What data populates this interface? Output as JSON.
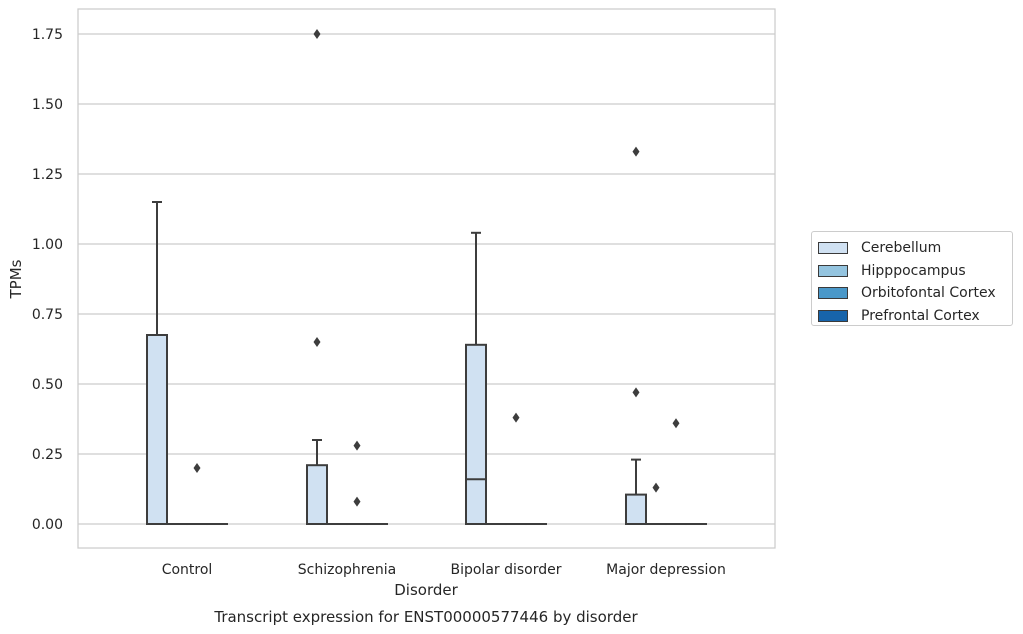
{
  "chart_data": {
    "type": "box",
    "title": "Transcript expression for ENST00000577446 by disorder",
    "xlabel": "Disorder",
    "ylabel": "TPMs",
    "categories": [
      "Control",
      "Schizophrenia",
      "Bipolar disorder",
      "Major depression"
    ],
    "ylim": [
      -0.085,
      1.84
    ],
    "yticks": [
      0.0,
      0.25,
      0.5,
      0.75,
      1.0,
      1.25,
      1.5,
      1.75
    ],
    "ytick_labels": [
      "0.00",
      "0.25",
      "0.50",
      "0.75",
      "1.00",
      "1.25",
      "1.50",
      "1.75"
    ],
    "grid": "horizontal",
    "legend_position": "outside-right",
    "series": [
      {
        "name": "Cerebellum",
        "color": "#d0e1f2",
        "boxes": [
          {
            "q1": 0.0,
            "median": 0.0,
            "q3": 0.675,
            "whisker_low": 0.0,
            "whisker_high": 1.15,
            "outliers": []
          },
          {
            "q1": 0.0,
            "median": 0.0,
            "q3": 0.21,
            "whisker_low": 0.0,
            "whisker_high": 0.3,
            "outliers": [
              0.65,
              1.75
            ]
          },
          {
            "q1": 0.0,
            "median": 0.16,
            "q3": 0.64,
            "whisker_low": 0.0,
            "whisker_high": 1.04,
            "outliers": []
          },
          {
            "q1": 0.0,
            "median": 0.0,
            "q3": 0.105,
            "whisker_low": 0.0,
            "whisker_high": 0.23,
            "outliers": [
              0.47,
              1.33
            ]
          }
        ]
      },
      {
        "name": "Hipppocampus",
        "color": "#94c4df",
        "boxes": [
          {
            "q1": 0.0,
            "median": 0.0,
            "q3": 0.0,
            "whisker_low": 0.0,
            "whisker_high": 0.0,
            "outliers": []
          },
          {
            "q1": 0.0,
            "median": 0.0,
            "q3": 0.0,
            "whisker_low": 0.0,
            "whisker_high": 0.0,
            "outliers": []
          },
          {
            "q1": 0.0,
            "median": 0.0,
            "q3": 0.0,
            "whisker_low": 0.0,
            "whisker_high": 0.0,
            "outliers": []
          },
          {
            "q1": 0.0,
            "median": 0.0,
            "q3": 0.0,
            "whisker_low": 0.0,
            "whisker_high": 0.0,
            "outliers": [
              0.13
            ]
          }
        ]
      },
      {
        "name": "Orbitofontal Cortex",
        "color": "#4a98c9",
        "boxes": [
          {
            "q1": 0.0,
            "median": 0.0,
            "q3": 0.0,
            "whisker_low": 0.0,
            "whisker_high": 0.0,
            "outliers": [
              0.2
            ]
          },
          {
            "q1": 0.0,
            "median": 0.0,
            "q3": 0.0,
            "whisker_low": 0.0,
            "whisker_high": 0.0,
            "outliers": [
              0.08,
              0.28
            ]
          },
          {
            "q1": 0.0,
            "median": 0.0,
            "q3": 0.0,
            "whisker_low": 0.0,
            "whisker_high": 0.0,
            "outliers": [
              0.38
            ]
          },
          {
            "q1": 0.0,
            "median": 0.0,
            "q3": 0.0,
            "whisker_low": 0.0,
            "whisker_high": 0.0,
            "outliers": [
              0.36
            ]
          }
        ]
      },
      {
        "name": "Prefrontal Cortex",
        "color": "#1764ab",
        "boxes": [
          {
            "q1": 0.0,
            "median": 0.0,
            "q3": 0.0,
            "whisker_low": 0.0,
            "whisker_high": 0.0,
            "outliers": []
          },
          {
            "q1": 0.0,
            "median": 0.0,
            "q3": 0.0,
            "whisker_low": 0.0,
            "whisker_high": 0.0,
            "outliers": []
          },
          {
            "q1": 0.0,
            "median": 0.0,
            "q3": 0.0,
            "whisker_low": 0.0,
            "whisker_high": 0.0,
            "outliers": []
          },
          {
            "q1": 0.0,
            "median": 0.0,
            "q3": 0.0,
            "whisker_low": 0.0,
            "whisker_high": 0.0,
            "outliers": []
          }
        ]
      }
    ]
  }
}
